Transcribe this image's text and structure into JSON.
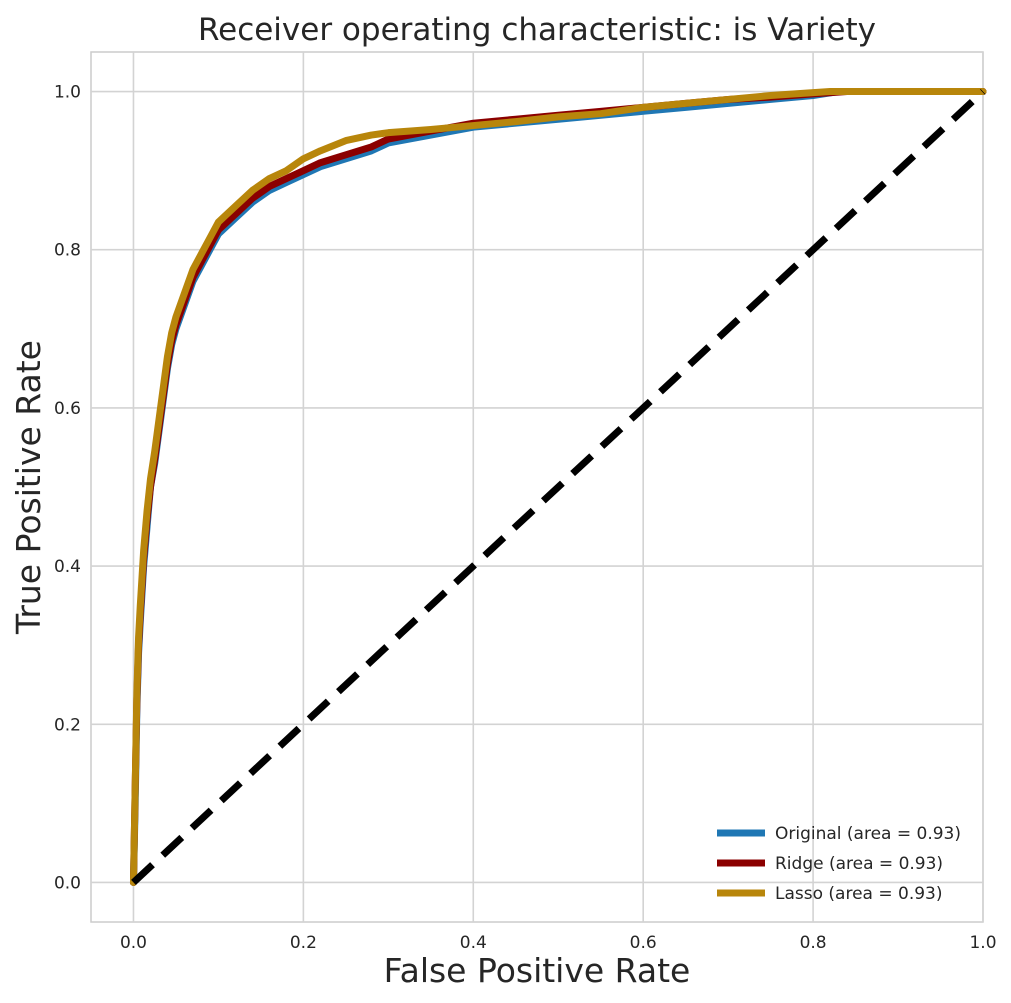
{
  "chart_data": {
    "type": "line",
    "title": "Receiver operating characteristic: is Variety",
    "xlabel": "False Positive Rate",
    "ylabel": "True Positive Rate",
    "xlim": [
      -0.05,
      1.0
    ],
    "ylim": [
      -0.05,
      1.05
    ],
    "x_ticks": [
      0.0,
      0.2,
      0.4,
      0.6,
      0.8,
      1.0
    ],
    "x_tick_labels": [
      "0.0",
      "0.2",
      "0.4",
      "0.6",
      "0.8",
      "1.0"
    ],
    "y_ticks": [
      0.0,
      0.2,
      0.4,
      0.6,
      0.8,
      1.0
    ],
    "y_tick_labels": [
      "0.0",
      "0.2",
      "0.4",
      "0.6",
      "0.8",
      "1.0"
    ],
    "grid": true,
    "legend_position": "lower-right",
    "series": [
      {
        "name": "Original (area = 0.93)",
        "color": "#1f77b4",
        "x": [
          0.0,
          0.002,
          0.004,
          0.006,
          0.008,
          0.012,
          0.016,
          0.02,
          0.025,
          0.03,
          0.035,
          0.04,
          0.045,
          0.05,
          0.06,
          0.07,
          0.08,
          0.09,
          0.1,
          0.12,
          0.14,
          0.16,
          0.18,
          0.2,
          0.22,
          0.25,
          0.28,
          0.3,
          0.35,
          0.4,
          0.45,
          0.5,
          0.55,
          0.6,
          0.65,
          0.7,
          0.75,
          0.8,
          0.83,
          0.86,
          0.9,
          1.0
        ],
        "y": [
          0.0,
          0.1,
          0.22,
          0.29,
          0.33,
          0.4,
          0.45,
          0.5,
          0.53,
          0.57,
          0.61,
          0.65,
          0.68,
          0.7,
          0.73,
          0.76,
          0.78,
          0.8,
          0.82,
          0.84,
          0.86,
          0.875,
          0.885,
          0.895,
          0.905,
          0.915,
          0.925,
          0.935,
          0.945,
          0.955,
          0.96,
          0.965,
          0.97,
          0.975,
          0.98,
          0.985,
          0.99,
          0.995,
          1.0,
          1.0,
          1.0,
          1.0
        ]
      },
      {
        "name": "Ridge (area = 0.93)",
        "color": "#8b0000",
        "x": [
          0.0,
          0.002,
          0.004,
          0.006,
          0.008,
          0.012,
          0.016,
          0.02,
          0.025,
          0.03,
          0.035,
          0.04,
          0.045,
          0.05,
          0.06,
          0.07,
          0.08,
          0.09,
          0.1,
          0.12,
          0.14,
          0.16,
          0.18,
          0.2,
          0.22,
          0.25,
          0.28,
          0.3,
          0.35,
          0.4,
          0.45,
          0.5,
          0.55,
          0.6,
          0.65,
          0.7,
          0.75,
          0.8,
          0.84,
          0.9,
          1.0
        ],
        "y": [
          0.0,
          0.12,
          0.23,
          0.3,
          0.34,
          0.41,
          0.46,
          0.5,
          0.535,
          0.575,
          0.615,
          0.655,
          0.685,
          0.705,
          0.735,
          0.765,
          0.785,
          0.805,
          0.825,
          0.845,
          0.865,
          0.88,
          0.89,
          0.9,
          0.91,
          0.92,
          0.93,
          0.94,
          0.95,
          0.96,
          0.965,
          0.97,
          0.975,
          0.98,
          0.985,
          0.99,
          0.993,
          0.997,
          1.0,
          1.0,
          1.0
        ]
      },
      {
        "name": "Lasso (area = 0.93)",
        "color": "#b8860b",
        "x": [
          0.0,
          0.002,
          0.004,
          0.006,
          0.008,
          0.012,
          0.016,
          0.02,
          0.025,
          0.03,
          0.035,
          0.04,
          0.045,
          0.05,
          0.06,
          0.07,
          0.08,
          0.09,
          0.1,
          0.12,
          0.14,
          0.16,
          0.18,
          0.2,
          0.22,
          0.25,
          0.28,
          0.3,
          0.35,
          0.4,
          0.45,
          0.5,
          0.55,
          0.6,
          0.65,
          0.7,
          0.75,
          0.82,
          0.9,
          1.0
        ],
        "y": [
          0.0,
          0.12,
          0.24,
          0.31,
          0.35,
          0.42,
          0.47,
          0.51,
          0.545,
          0.585,
          0.625,
          0.665,
          0.695,
          0.715,
          0.745,
          0.775,
          0.795,
          0.815,
          0.835,
          0.855,
          0.875,
          0.89,
          0.9,
          0.915,
          0.925,
          0.938,
          0.945,
          0.948,
          0.952,
          0.957,
          0.962,
          0.968,
          0.972,
          0.98,
          0.985,
          0.99,
          0.995,
          1.0,
          1.0,
          1.0
        ]
      },
      {
        "name": "",
        "color": "#000000",
        "style": "dashed",
        "x": [
          0.0,
          1.0
        ],
        "y": [
          0.0,
          1.0
        ]
      }
    ]
  }
}
